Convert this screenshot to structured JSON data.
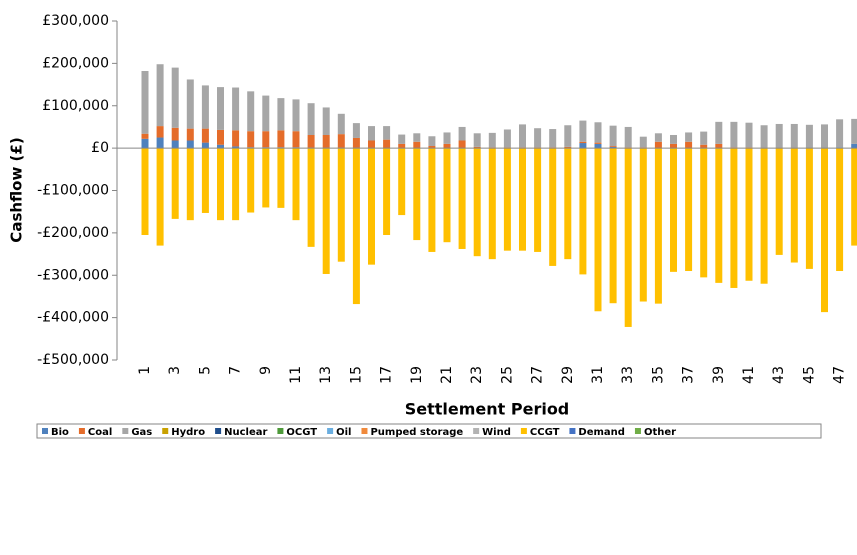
{
  "chart_data": {
    "type": "stacked_bar",
    "y_label": "Cashflow (£)",
    "x_label": "Settlement Period",
    "categories": [
      "1",
      null,
      "3",
      null,
      "5",
      null,
      "7",
      null,
      "9",
      null,
      "11",
      null,
      "13",
      null,
      "15",
      null,
      "17",
      null,
      "19",
      null,
      "21",
      null,
      "23",
      null,
      "25",
      null,
      "27",
      null,
      "29",
      null,
      "31",
      null,
      "33",
      null,
      "35",
      null,
      "37",
      null,
      "39",
      null,
      "41",
      null,
      "43",
      null,
      "45",
      null,
      "47",
      null
    ],
    "ylim": [
      -500000,
      300000
    ],
    "yticks": [
      {
        "value": -500000,
        "label": "-£500,000"
      },
      {
        "value": -400000,
        "label": "-£400,000"
      },
      {
        "value": -300000,
        "label": "-£300,000"
      },
      {
        "value": -200000,
        "label": "-£200,000"
      },
      {
        "value": -100000,
        "label": "-£100,000"
      },
      {
        "value": 0,
        "label": "£0"
      },
      {
        "value": 100000,
        "label": "£100,000"
      },
      {
        "value": 200000,
        "label": "£200,000"
      },
      {
        "value": 300000,
        "label": "£300,000"
      }
    ],
    "grid": false,
    "legend": "bottom",
    "series": [
      {
        "name": "Bio",
        "color": "#4f81bd",
        "values": [
          22000,
          25000,
          18000,
          18000,
          13000,
          8000,
          4000,
          2000,
          2000,
          2000,
          2000,
          1000,
          1000,
          1000,
          1000,
          0,
          0,
          0,
          0,
          0,
          0,
          0,
          0,
          0,
          0,
          0,
          0,
          0,
          0,
          12000,
          10000,
          3000,
          0,
          0,
          0,
          0,
          0,
          0,
          0,
          0,
          0,
          0,
          0,
          0,
          0,
          0,
          2000,
          10000
        ]
      },
      {
        "name": "Coal",
        "color": "#e46c2a",
        "values": [
          12000,
          27000,
          30000,
          28000,
          33000,
          35000,
          38000,
          38000,
          38000,
          40000,
          38000,
          30000,
          30000,
          32000,
          23000,
          18000,
          20000,
          10000,
          15000,
          5000,
          10000,
          18000,
          3000,
          2000,
          2000,
          2000,
          2000,
          2000,
          3000,
          3000,
          3000,
          2000,
          2000,
          2000,
          15000,
          10000,
          15000,
          8000,
          10000,
          2000,
          2000,
          1000,
          1000,
          1000,
          0,
          0,
          0,
          0
        ]
      },
      {
        "name": "Gas",
        "color": "#a6a6a6",
        "values": [
          148000,
          146000,
          142000,
          116000,
          102000,
          101000,
          101000,
          94000,
          84000,
          76000,
          75000,
          75000,
          65000,
          48000,
          35000,
          34000,
          32000,
          22000,
          20000,
          23000,
          27000,
          32000,
          32000,
          34000,
          42000,
          54000,
          45000,
          43000,
          51000,
          50000,
          48000,
          48000,
          48000,
          25000,
          20000,
          21000,
          22000,
          31000,
          52000,
          60000,
          58000,
          53000,
          56000,
          56000,
          55000,
          56000,
          66000,
          59000
        ]
      },
      {
        "name": "Hydro",
        "color": "#c9a100",
        "values": [
          0,
          0,
          0,
          0,
          0,
          0,
          0,
          0,
          0,
          0,
          0,
          0,
          0,
          0,
          0,
          0,
          0,
          0,
          0,
          0,
          0,
          0,
          0,
          0,
          0,
          0,
          0,
          0,
          0,
          0,
          0,
          0,
          0,
          0,
          0,
          0,
          0,
          0,
          0,
          0,
          0,
          0,
          0,
          0,
          0,
          0,
          0,
          0
        ]
      },
      {
        "name": "Nuclear",
        "color": "#1f4e8c",
        "values": [
          0,
          0,
          0,
          0,
          0,
          0,
          0,
          0,
          0,
          0,
          0,
          0,
          0,
          0,
          0,
          0,
          0,
          0,
          0,
          0,
          0,
          0,
          0,
          0,
          0,
          0,
          0,
          0,
          0,
          0,
          0,
          0,
          0,
          0,
          0,
          0,
          0,
          0,
          0,
          0,
          0,
          0,
          0,
          0,
          0,
          0,
          0,
          0
        ]
      },
      {
        "name": "OCGT",
        "color": "#4e9a3a",
        "values": [
          0,
          0,
          0,
          0,
          0,
          0,
          0,
          0,
          0,
          0,
          0,
          0,
          0,
          0,
          0,
          0,
          0,
          0,
          0,
          0,
          0,
          0,
          0,
          0,
          0,
          0,
          0,
          0,
          0,
          0,
          0,
          0,
          0,
          0,
          0,
          0,
          0,
          0,
          0,
          0,
          0,
          0,
          0,
          0,
          0,
          0,
          0,
          0
        ]
      },
      {
        "name": "Oil",
        "color": "#6aaee0",
        "values": [
          0,
          0,
          0,
          0,
          0,
          0,
          0,
          0,
          0,
          0,
          0,
          0,
          0,
          0,
          0,
          0,
          0,
          0,
          0,
          0,
          0,
          0,
          0,
          0,
          0,
          0,
          0,
          0,
          0,
          0,
          0,
          0,
          0,
          0,
          0,
          0,
          0,
          0,
          0,
          0,
          0,
          0,
          0,
          0,
          0,
          0,
          0,
          0
        ]
      },
      {
        "name": "Pumped storage",
        "color": "#f08a3c",
        "values": [
          0,
          0,
          0,
          0,
          0,
          0,
          0,
          0,
          0,
          0,
          0,
          0,
          0,
          0,
          0,
          0,
          0,
          0,
          0,
          0,
          0,
          0,
          0,
          0,
          0,
          0,
          0,
          0,
          0,
          0,
          0,
          0,
          0,
          0,
          0,
          0,
          0,
          0,
          0,
          0,
          0,
          0,
          0,
          0,
          0,
          0,
          0,
          0
        ]
      },
      {
        "name": "Wind",
        "color": "#b3b3b3",
        "values": [
          0,
          0,
          0,
          0,
          0,
          0,
          0,
          0,
          0,
          0,
          0,
          0,
          0,
          0,
          0,
          0,
          0,
          0,
          0,
          0,
          0,
          0,
          0,
          0,
          0,
          0,
          0,
          0,
          0,
          0,
          0,
          0,
          0,
          0,
          0,
          0,
          0,
          0,
          0,
          0,
          0,
          0,
          0,
          0,
          0,
          0,
          0,
          0
        ]
      },
      {
        "name": "CCGT",
        "color": "#ffc000",
        "values": [
          -205000,
          -230000,
          -167000,
          -170000,
          -153000,
          -170000,
          -170000,
          -152000,
          -140000,
          -141000,
          -170000,
          -233000,
          -297000,
          -268000,
          -368000,
          -275000,
          -205000,
          -158000,
          -217000,
          -245000,
          -222000,
          -238000,
          -255000,
          -262000,
          -242000,
          -242000,
          -245000,
          -278000,
          -262000,
          -298000,
          -385000,
          -366000,
          -422000,
          -362000,
          -367000,
          -292000,
          -290000,
          -305000,
          -318000,
          -330000,
          -313000,
          -320000,
          -252000,
          -270000,
          -285000,
          -387000,
          -290000,
          -230000
        ]
      },
      {
        "name": "Demand",
        "color": "#4472c4",
        "values": [
          0,
          0,
          0,
          0,
          0,
          0,
          0,
          0,
          0,
          0,
          0,
          0,
          0,
          0,
          0,
          0,
          0,
          0,
          0,
          0,
          0,
          0,
          0,
          0,
          0,
          0,
          0,
          0,
          0,
          0,
          0,
          0,
          0,
          0,
          0,
          0,
          0,
          0,
          0,
          0,
          0,
          0,
          0,
          0,
          0,
          0,
          0,
          0
        ]
      },
      {
        "name": "Other",
        "color": "#70ad47",
        "values": [
          0,
          0,
          0,
          0,
          0,
          0,
          0,
          0,
          0,
          0,
          0,
          0,
          0,
          0,
          0,
          0,
          0,
          0,
          0,
          0,
          0,
          0,
          0,
          0,
          0,
          0,
          0,
          0,
          0,
          0,
          0,
          0,
          0,
          0,
          0,
          0,
          0,
          0,
          0,
          0,
          0,
          0,
          0,
          0,
          0,
          0,
          0,
          0
        ]
      }
    ]
  }
}
